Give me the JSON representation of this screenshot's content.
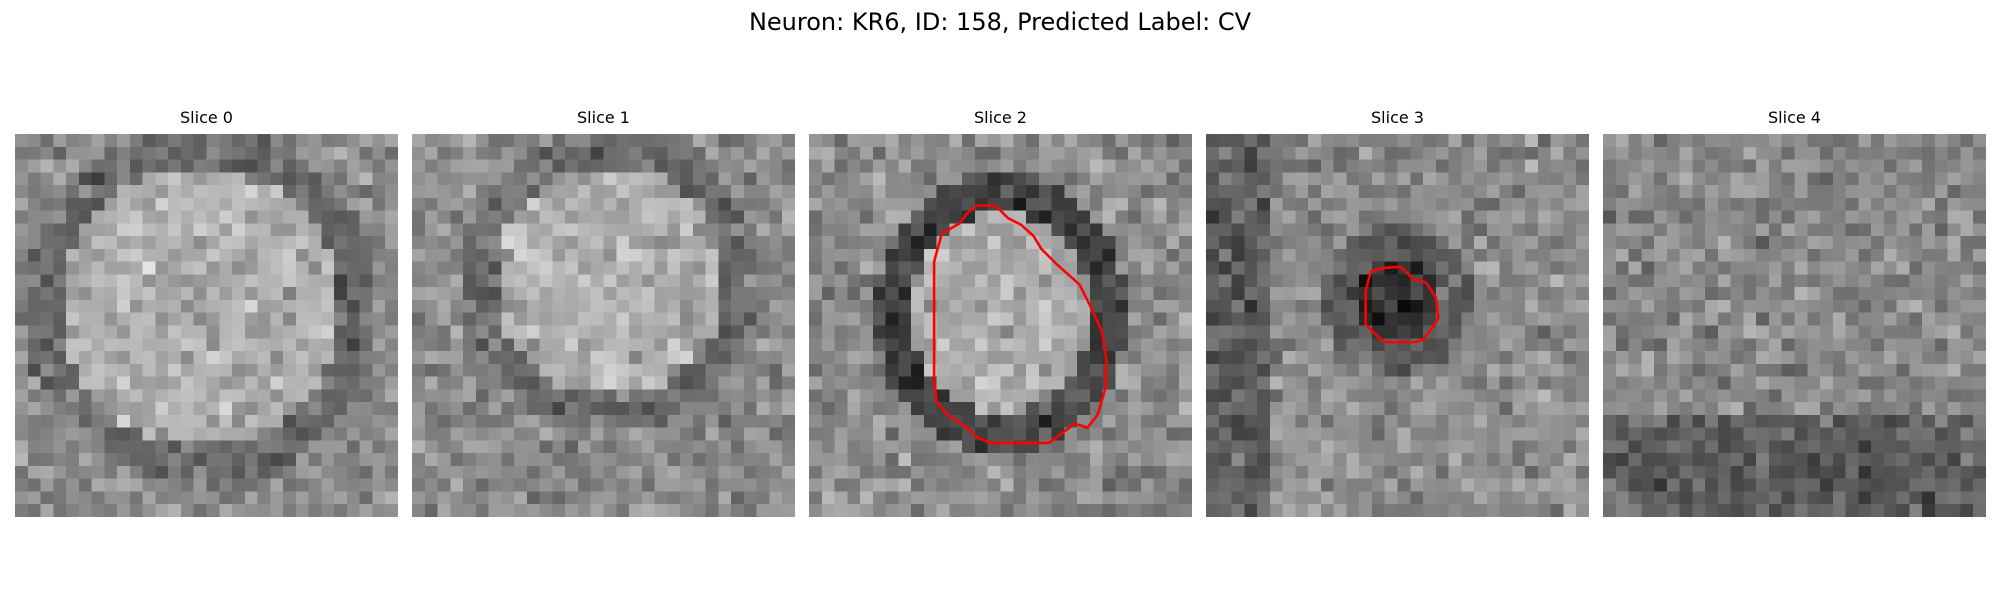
{
  "figure": {
    "title": "Neuron: KR6, ID: 158, Predicted Label: CV"
  },
  "colors": {
    "contour": "#ff0000",
    "background": "#ffffff"
  },
  "panels": [
    {
      "title": "Slice 0",
      "pattern": "bright-blob",
      "contour": "none"
    },
    {
      "title": "Slice 1",
      "pattern": "bright-blob",
      "contour": "none"
    },
    {
      "title": "Slice 2",
      "pattern": "ring",
      "contour": "large-outline"
    },
    {
      "title": "Slice 3",
      "pattern": "dark-spot",
      "contour": "small-outline"
    },
    {
      "title": "Slice 4",
      "pattern": "noise",
      "contour": "none"
    }
  ]
}
